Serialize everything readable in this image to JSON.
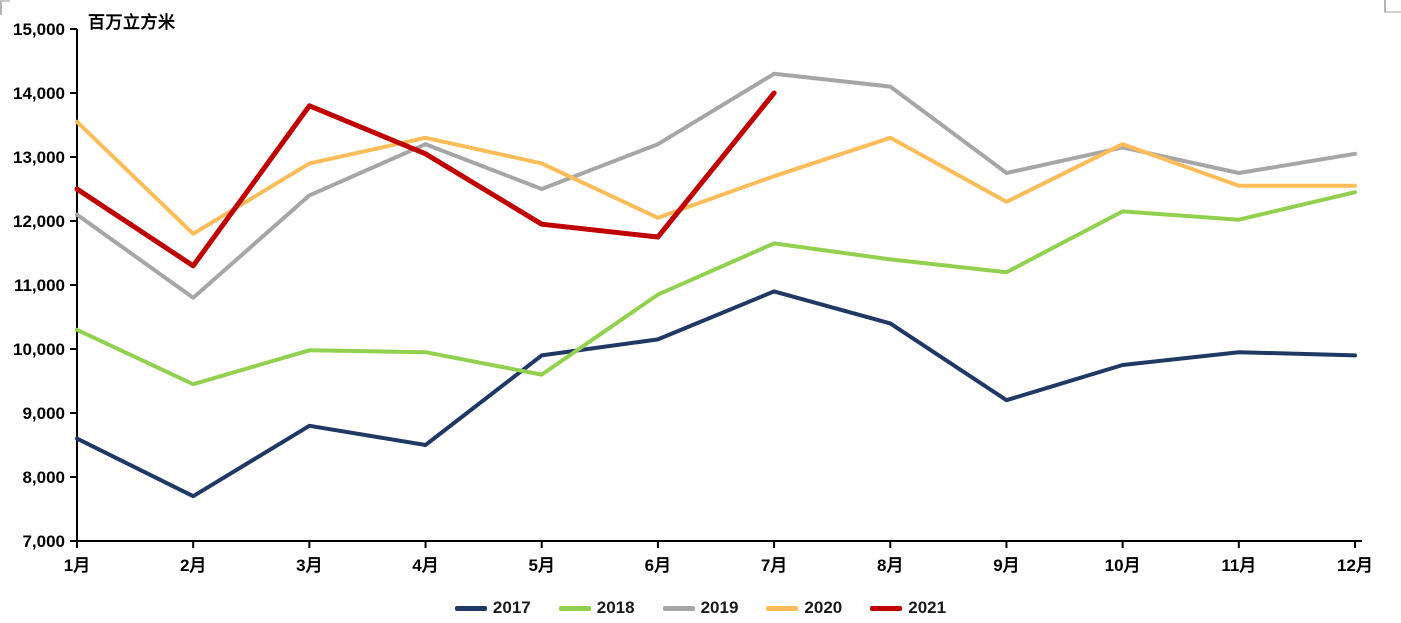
{
  "chart_data": {
    "type": "line",
    "title": "",
    "unit_label": "百万立方米",
    "ylabel": "百万立方米",
    "xlabel": "",
    "grid": false,
    "legend_position": "bottom",
    "axis_color": "#000000",
    "ylim": [
      7000,
      15000
    ],
    "y_ticks": [
      15000,
      14000,
      13000,
      12000,
      11000,
      10000,
      9000,
      8000,
      7000
    ],
    "y_tick_labels": [
      "15,000",
      "14,000",
      "13,000",
      "12,000",
      "11,000",
      "10,000",
      "9,000",
      "8,000",
      "7,000"
    ],
    "categories": [
      "1月",
      "2月",
      "3月",
      "4月",
      "5月",
      "6月",
      "7月",
      "8月",
      "9月",
      "10月",
      "11月",
      "12月"
    ],
    "series": [
      {
        "name": "2017",
        "color": "#1F3864",
        "values": [
          8600,
          7700,
          8800,
          8500,
          9900,
          10150,
          10900,
          10400,
          9200,
          9750,
          9950,
          9900
        ]
      },
      {
        "name": "2018",
        "color": "#92D050",
        "values": [
          10300,
          9450,
          9980,
          9950,
          9600,
          10850,
          11650,
          11400,
          11200,
          12150,
          12020,
          12450
        ]
      },
      {
        "name": "2019",
        "color": "#A6A6A6",
        "values": [
          12100,
          10800,
          12400,
          13200,
          12500,
          13200,
          14300,
          14100,
          12750,
          13150,
          12750,
          13050
        ]
      },
      {
        "name": "2020",
        "color": "#FBBD59",
        "values": [
          13550,
          11800,
          12900,
          13300,
          12900,
          12050,
          12700,
          13300,
          12300,
          13200,
          12550,
          12550
        ]
      },
      {
        "name": "2021",
        "color": "#C00000",
        "values": [
          12500,
          11300,
          13800,
          13050,
          11950,
          11750,
          14000,
          null,
          null,
          null,
          null,
          null
        ]
      }
    ]
  }
}
